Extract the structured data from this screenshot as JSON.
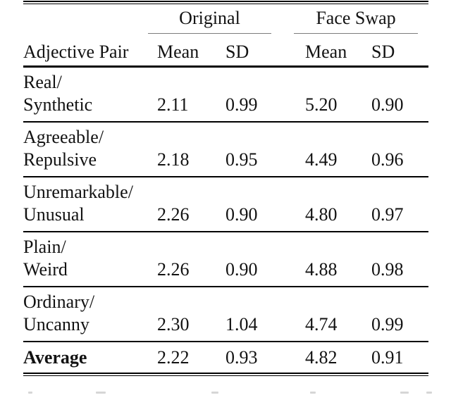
{
  "table": {
    "column_groups": [
      {
        "label": "Original"
      },
      {
        "label": "Face Swap"
      }
    ],
    "headers": {
      "adjective_pair": "Adjective Pair",
      "mean": "Mean",
      "sd": "SD"
    },
    "rows": [
      {
        "pair_line1": "Real/",
        "pair_line2": "Synthetic",
        "original_mean": "2.11",
        "original_sd": "0.99",
        "faceswap_mean": "5.20",
        "faceswap_sd": "0.90"
      },
      {
        "pair_line1": "Agreeable/",
        "pair_line2": "Repulsive",
        "original_mean": "2.18",
        "original_sd": "0.95",
        "faceswap_mean": "4.49",
        "faceswap_sd": "0.96"
      },
      {
        "pair_line1": "Unremarkable/",
        "pair_line2": "Unusual",
        "original_mean": "2.26",
        "original_sd": "0.90",
        "faceswap_mean": "4.80",
        "faceswap_sd": "0.97"
      },
      {
        "pair_line1": "Plain/",
        "pair_line2": "Weird",
        "original_mean": "2.26",
        "original_sd": "0.90",
        "faceswap_mean": "4.88",
        "faceswap_sd": "0.98"
      },
      {
        "pair_line1": "Ordinary/",
        "pair_line2": "Uncanny",
        "original_mean": "2.30",
        "original_sd": "1.04",
        "faceswap_mean": "4.74",
        "faceswap_sd": "0.99"
      }
    ],
    "summary_row": {
      "label": "Average",
      "original_mean": "2.22",
      "original_sd": "0.93",
      "faceswap_mean": "4.82",
      "faceswap_sd": "0.91"
    }
  },
  "chart_data": {
    "type": "table",
    "title": "",
    "column_groups": [
      "Original",
      "Face Swap"
    ],
    "columns": [
      "Adjective Pair",
      "Original Mean",
      "Original SD",
      "Face Swap Mean",
      "Face Swap SD"
    ],
    "rows": [
      [
        "Real/Synthetic",
        2.11,
        0.99,
        5.2,
        0.9
      ],
      [
        "Agreeable/Repulsive",
        2.18,
        0.95,
        4.49,
        0.96
      ],
      [
        "Unremarkable/Unusual",
        2.26,
        0.9,
        4.8,
        0.97
      ],
      [
        "Plain/Weird",
        2.26,
        0.9,
        4.88,
        0.98
      ],
      [
        "Ordinary/Uncanny",
        2.3,
        1.04,
        4.74,
        0.99
      ],
      [
        "Average",
        2.22,
        0.93,
        4.82,
        0.91
      ]
    ]
  },
  "colors": {
    "text": "#121212",
    "rule": "#000000",
    "cmidrule": "#7d7d7d",
    "background": "#ffffff"
  }
}
